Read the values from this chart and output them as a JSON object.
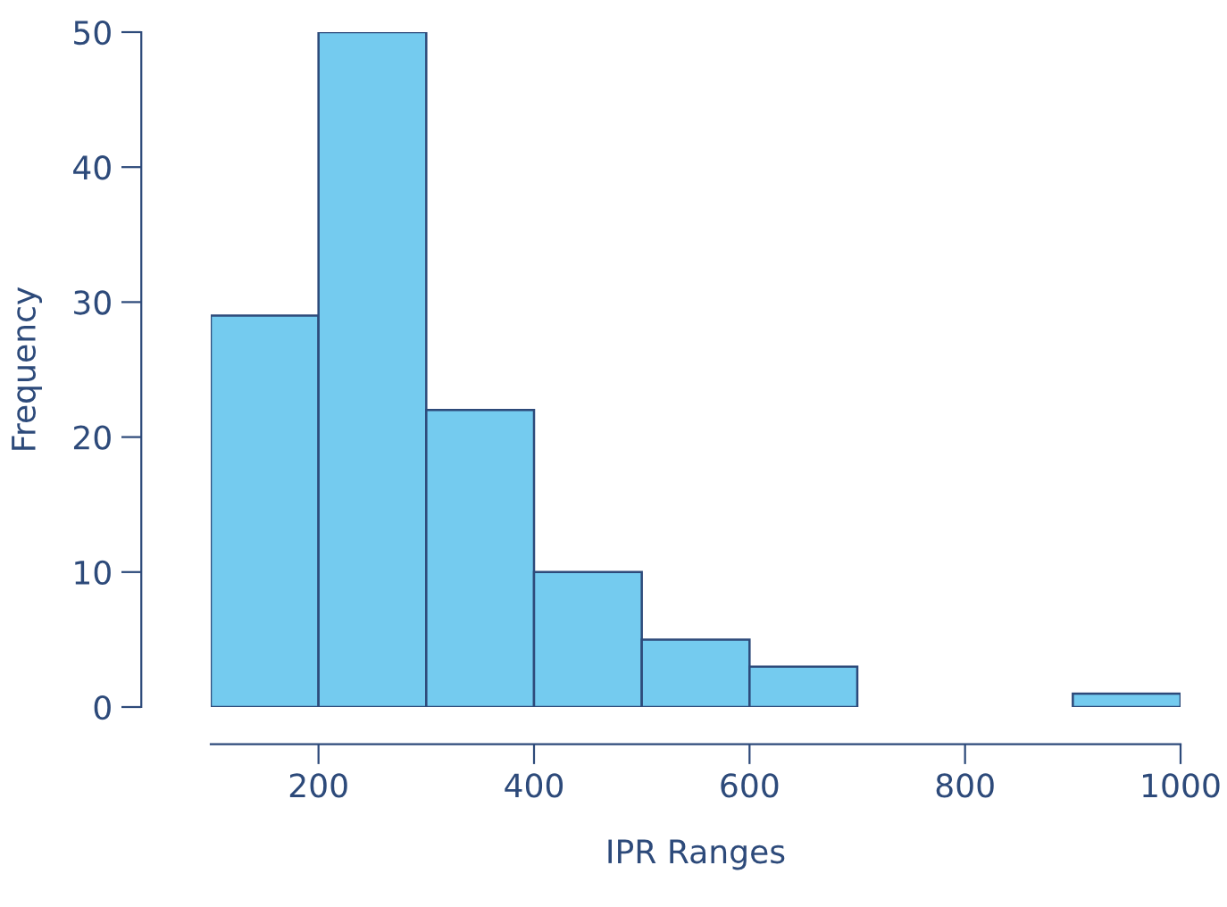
{
  "chart_data": {
    "type": "histogram",
    "xlabel": "IPR Ranges",
    "ylabel": "Frequency",
    "bins": [
      100,
      200,
      300,
      400,
      500,
      600,
      700,
      800,
      900,
      1000
    ],
    "values": [
      29,
      50,
      22,
      10,
      5,
      3,
      0,
      0,
      1
    ],
    "color": "#74cbef",
    "xlim": [
      100,
      1000
    ],
    "ylim": [
      0,
      50
    ],
    "xticks": [
      200,
      400,
      600,
      800,
      1000
    ],
    "yticks": [
      0,
      10,
      20,
      30,
      40,
      50
    ],
    "grid": false
  }
}
